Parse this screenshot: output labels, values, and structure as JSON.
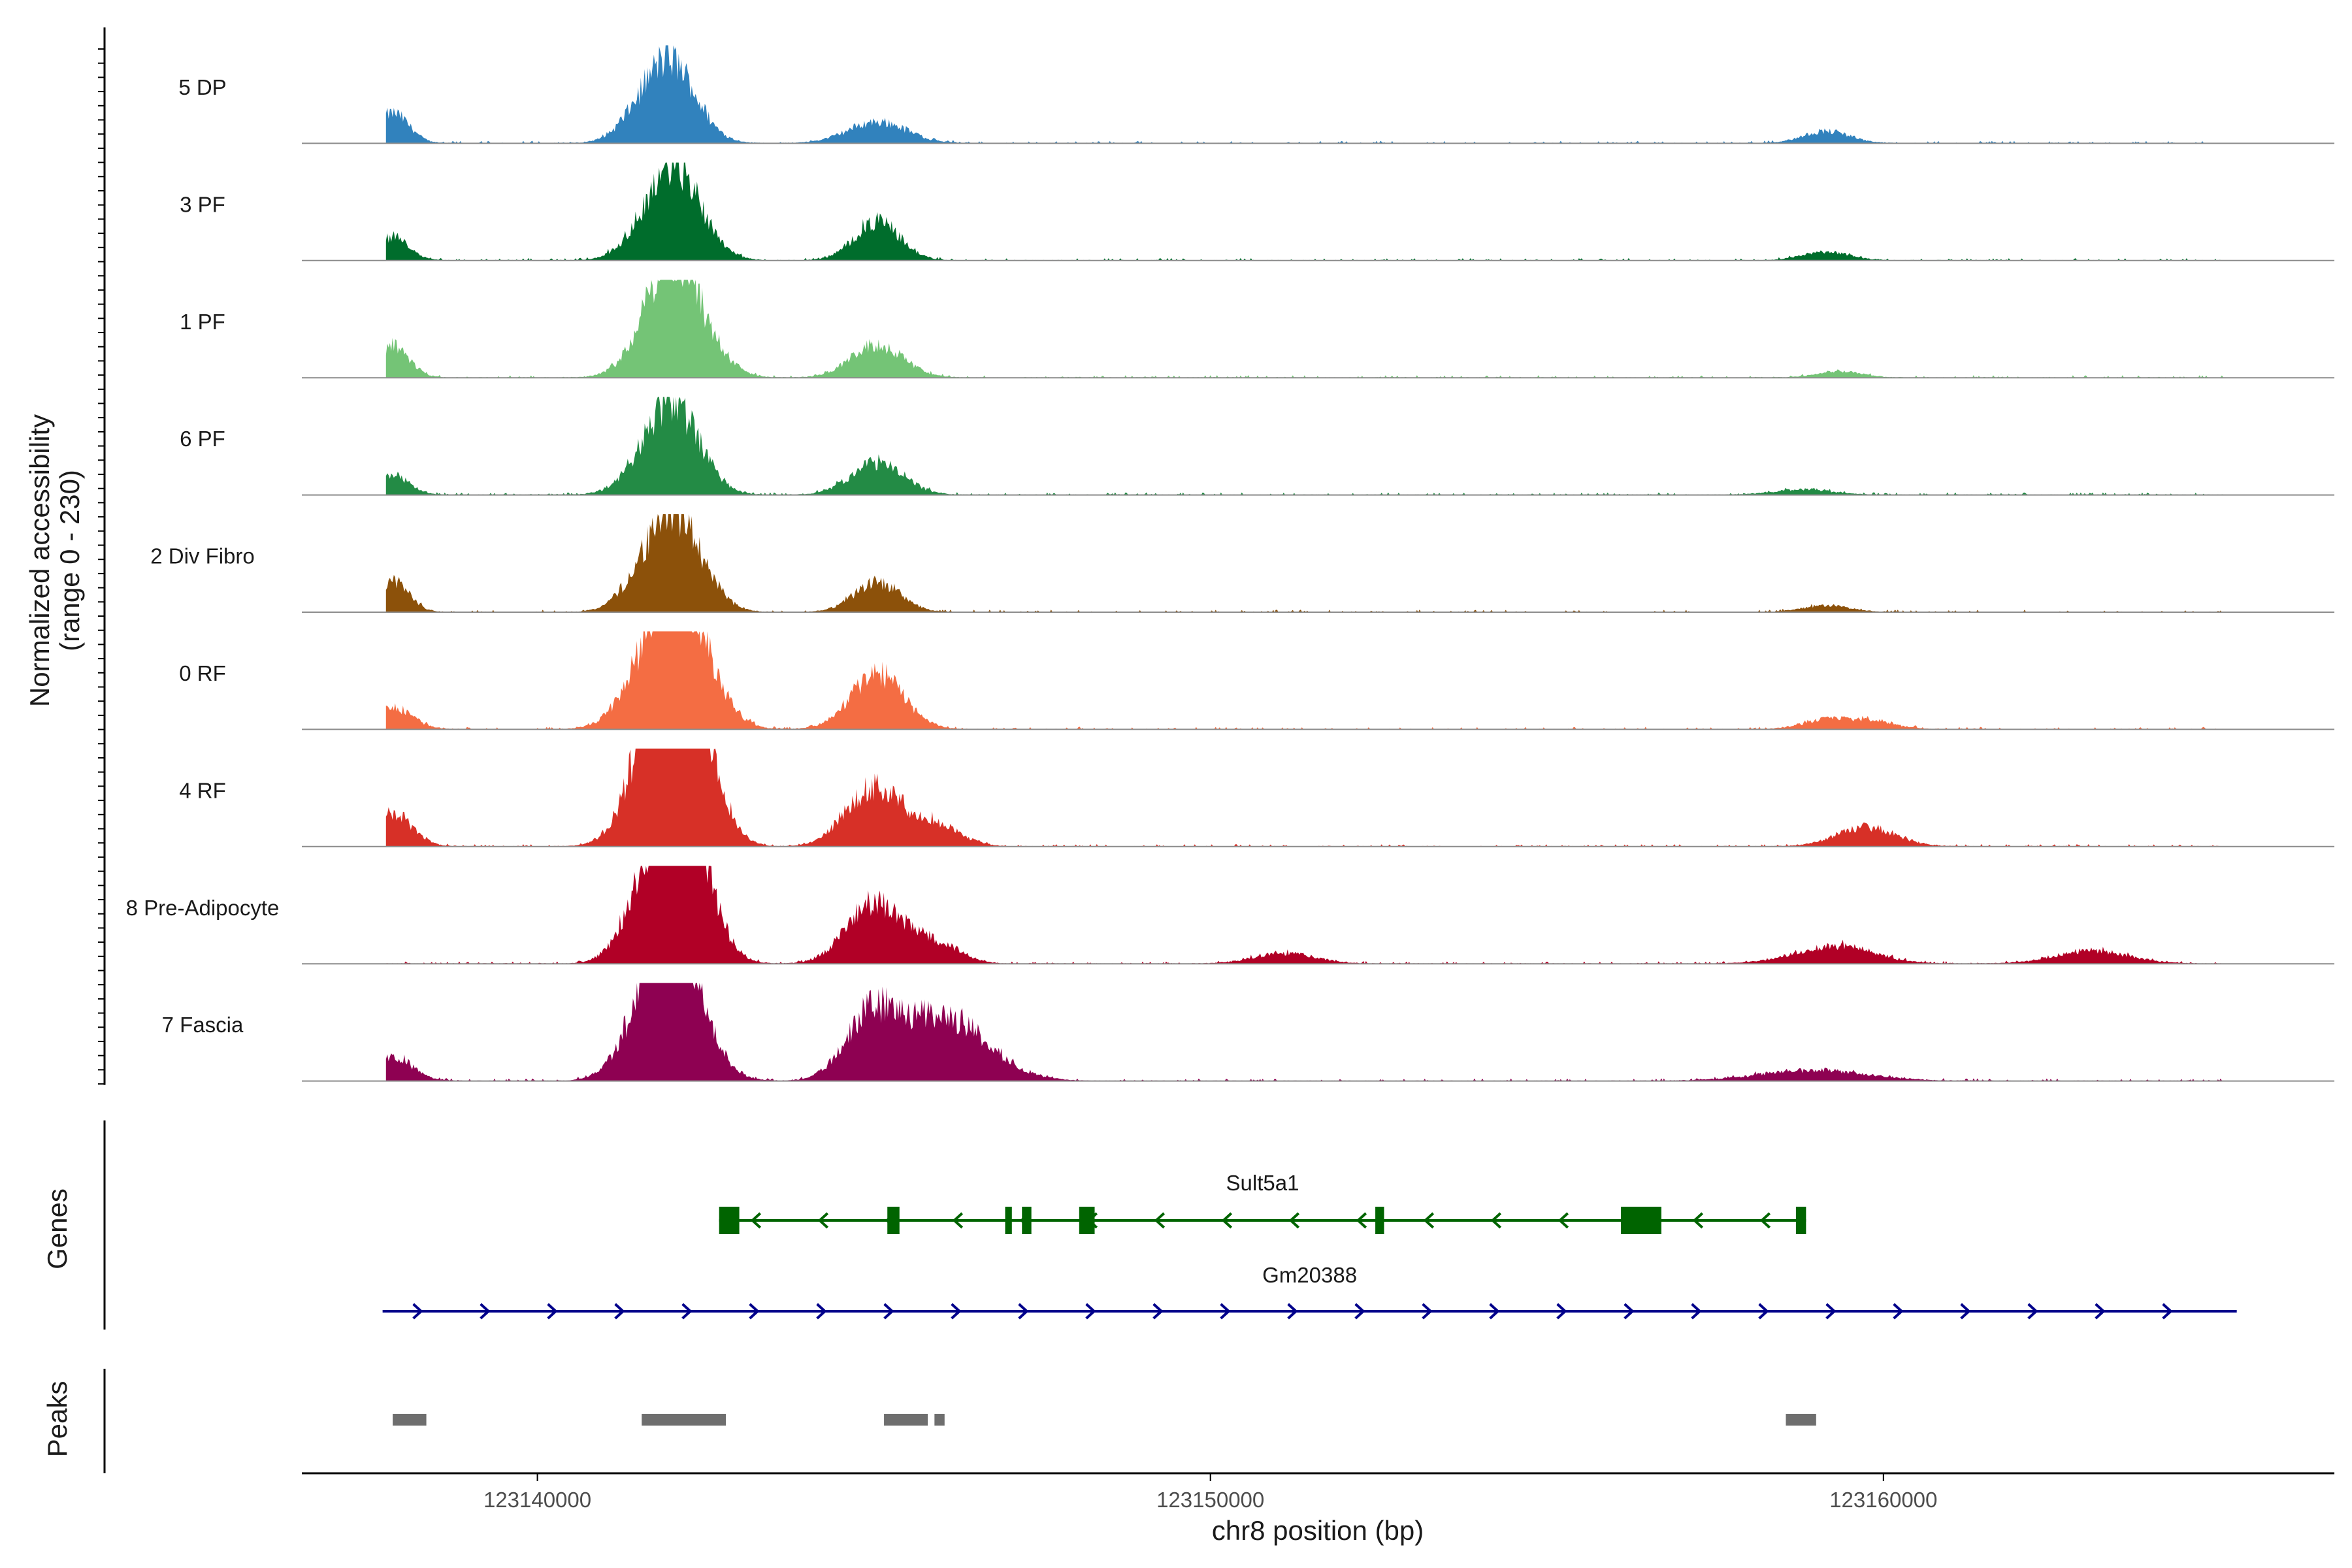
{
  "chart_data": {
    "type": "area",
    "title": "",
    "ylabel_line1": "Normalized accessibility",
    "ylabel_line2": "(range 0 - 230)",
    "y_range": [
      0,
      230
    ],
    "xlabel": "chr8 position (bp)",
    "x_range": [
      123136500,
      123166700
    ],
    "x_ticks": [
      123140000,
      123150000,
      123160000
    ],
    "x_tick_labels": [
      "123140000",
      "123150000",
      "123160000"
    ],
    "track_label_genes": "Genes",
    "track_label_peaks": "Peaks",
    "series": [
      {
        "name": "5 DP",
        "color": "#3182bd",
        "peaks": [
          [
            123137850,
            70,
            25
          ],
          [
            123141600,
            80,
            35
          ],
          [
            123141950,
            90,
            30
          ],
          [
            123142200,
            80,
            35
          ],
          [
            123145050,
            50,
            45
          ],
          [
            123159150,
            28,
            35
          ]
        ]
      },
      {
        "name": "3 PF",
        "color": "#006d2c",
        "peaks": [
          [
            123137850,
            55,
            25
          ],
          [
            123141650,
            80,
            35
          ],
          [
            123142000,
            110,
            30
          ],
          [
            123142300,
            95,
            35
          ],
          [
            123145050,
            90,
            35
          ],
          [
            123159150,
            20,
            35
          ]
        ]
      },
      {
        "name": "1 PF",
        "color": "#74c476",
        "peaks": [
          [
            123137850,
            75,
            25
          ],
          [
            123141600,
            60,
            35
          ],
          [
            123141950,
            150,
            30
          ],
          [
            123142250,
            150,
            40
          ],
          [
            123145050,
            75,
            40
          ],
          [
            123159350,
            14,
            35
          ]
        ]
      },
      {
        "name": "6 PF",
        "color": "#238b45",
        "peaks": [
          [
            123137850,
            45,
            25
          ],
          [
            123141600,
            70,
            35
          ],
          [
            123141950,
            110,
            30
          ],
          [
            123142250,
            100,
            35
          ],
          [
            123145050,
            75,
            40
          ],
          [
            123158800,
            12,
            45
          ]
        ]
      },
      {
        "name": "2 Div Fibro",
        "color": "#8c510a",
        "peaks": [
          [
            123137850,
            70,
            25
          ],
          [
            123141600,
            80,
            35
          ],
          [
            123141950,
            130,
            30
          ],
          [
            123142300,
            110,
            35
          ],
          [
            123145050,
            70,
            35
          ],
          [
            123159150,
            15,
            35
          ]
        ]
      },
      {
        "name": "0 RF",
        "color": "#f46d43",
        "peaks": [
          [
            123137850,
            50,
            30
          ],
          [
            123141650,
            130,
            40
          ],
          [
            123142050,
            170,
            35
          ],
          [
            123142350,
            140,
            40
          ],
          [
            123145050,
            130,
            40
          ],
          [
            123159150,
            22,
            35
          ],
          [
            123159850,
            18,
            35
          ]
        ]
      },
      {
        "name": "4 RF",
        "color": "#d73027",
        "peaks": [
          [
            123137850,
            75,
            30
          ],
          [
            123141500,
            90,
            35
          ],
          [
            123141800,
            210,
            30
          ],
          [
            123142100,
            215,
            35
          ],
          [
            123142400,
            180,
            35
          ],
          [
            123144950,
            130,
            40
          ],
          [
            123145650,
            40,
            40
          ],
          [
            123146050,
            25,
            35
          ],
          [
            123159750,
            45,
            45
          ]
        ]
      },
      {
        "name": "8 Pre-Adipocyte",
        "color": "#b10026",
        "peaks": [
          [
            123141550,
            90,
            35
          ],
          [
            123141800,
            130,
            35
          ],
          [
            123142100,
            225,
            30
          ],
          [
            123142350,
            170,
            35
          ],
          [
            123144950,
            130,
            40
          ],
          [
            123145600,
            35,
            40
          ],
          [
            123146000,
            30,
            35
          ],
          [
            123151100,
            25,
            45
          ],
          [
            123159050,
            25,
            55
          ],
          [
            123159550,
            22,
            50
          ],
          [
            123163100,
            30,
            55
          ]
        ]
      },
      {
        "name": "7 Fascia",
        "color": "#8e0152",
        "peaks": [
          [
            123137850,
            55,
            30
          ],
          [
            123141650,
            140,
            40
          ],
          [
            123141950,
            150,
            35
          ],
          [
            123142250,
            140,
            40
          ],
          [
            123144950,
            130,
            40
          ],
          [
            123145650,
            60,
            60
          ],
          [
            123146100,
            70,
            60
          ],
          [
            123146400,
            40,
            60
          ],
          [
            123158950,
            25,
            80
          ]
        ]
      }
    ],
    "genes": [
      {
        "name": "Sult5a1",
        "strand": "-",
        "color": "#006400",
        "start": 123142700,
        "end": 123158850,
        "exons": [
          [
            123142700,
            123143000
          ],
          [
            123145200,
            123145380
          ],
          [
            123146950,
            123147050
          ],
          [
            123147200,
            123147340
          ],
          [
            123148050,
            123148280
          ],
          [
            123152450,
            123152580
          ],
          [
            123156100,
            123156700
          ],
          [
            123158700,
            123158850
          ]
        ]
      },
      {
        "name": "Gm20388",
        "strand": "+",
        "color": "#00008b",
        "start": 123137700,
        "end": 123165250,
        "exons": []
      }
    ],
    "peaks_track": [
      [
        123137850,
        123138350
      ],
      [
        123141550,
        123142800
      ],
      [
        123145150,
        123145800
      ],
      [
        123145900,
        123146050
      ],
      [
        123158550,
        123159000
      ]
    ],
    "peaks_color": "#6e6e6e"
  }
}
